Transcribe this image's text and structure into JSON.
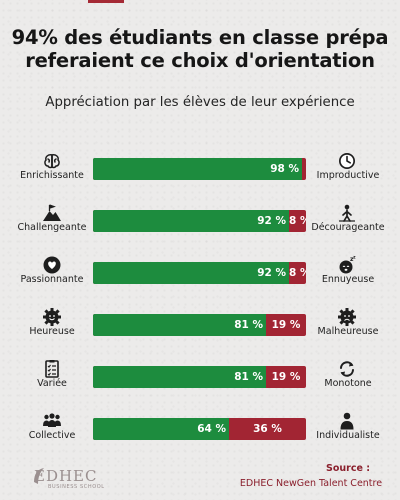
{
  "title_lines": [
    "94% des étudiants en classe prépa",
    "referaient ce choix d'orientation"
  ],
  "subtitle": "Appréciation par les élèves de leur expérience",
  "colors": {
    "positive": "#1d8c3e",
    "negative": "#a22533",
    "accent": "#a52a35"
  },
  "chart_data": {
    "type": "bar",
    "orientation": "horizontal",
    "stacked": true,
    "rows": [
      {
        "left_label": "Enrichissante",
        "right_label": "Improductive",
        "positive": 98,
        "negative": 2,
        "positive_text": "98 %",
        "negative_text": "",
        "left_icon": "brain-icon",
        "right_icon": "clock-icon"
      },
      {
        "left_label": "Challengeante",
        "right_label": "Décourageante",
        "positive": 92,
        "negative": 8,
        "positive_text": "92 %",
        "negative_text": "8 %",
        "left_icon": "mountain-flag-icon",
        "right_icon": "discouraged-icon"
      },
      {
        "left_label": "Passionnante",
        "right_label": "Ennuyeuse",
        "positive": 92,
        "negative": 8,
        "positive_text": "92 %",
        "negative_text": "8 %",
        "left_icon": "heart-hand-icon",
        "right_icon": "sleepy-face-icon"
      },
      {
        "left_label": "Heureuse",
        "right_label": "Malheureuse",
        "positive": 81,
        "negative": 19,
        "positive_text": "81 %",
        "negative_text": "19 %",
        "left_icon": "happy-gear-icon",
        "right_icon": "sad-gear-icon"
      },
      {
        "left_label": "Variée",
        "right_label": "Monotone",
        "positive": 81,
        "negative": 19,
        "positive_text": "81 %",
        "negative_text": "19 %",
        "left_icon": "checklist-icon",
        "right_icon": "cycle-arrows-icon"
      },
      {
        "left_label": "Collective",
        "right_label": "Individualiste",
        "positive": 64,
        "negative": 36,
        "positive_text": "64 %",
        "negative_text": "36 %",
        "left_icon": "group-icon",
        "right_icon": "person-icon"
      }
    ]
  },
  "logo": {
    "name": "EDHEC",
    "tagline": "BUSINESS SCHOOL"
  },
  "source": {
    "label": "Source :",
    "text": "EDHEC NewGen Talent Centre"
  }
}
